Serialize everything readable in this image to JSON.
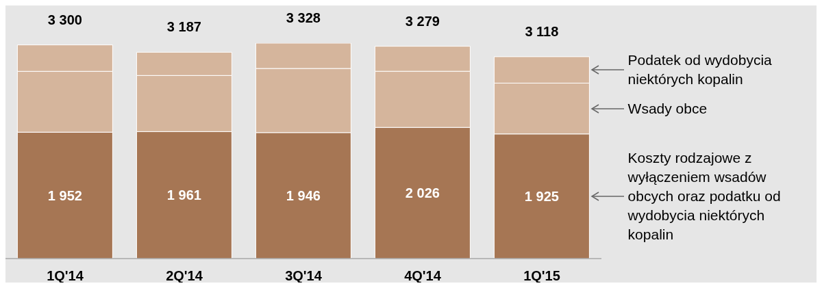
{
  "chart_data": {
    "type": "bar",
    "stacked": true,
    "categories": [
      "1Q'14",
      "2Q'14",
      "3Q'14",
      "4Q'14",
      "1Q'15"
    ],
    "series": [
      {
        "name": "Koszty rodzajowe z wyłączeniem wsadów obcych oraz podatku od wydobycia niektórych kopalin",
        "color": "#a67654",
        "values": [
          1952,
          1961,
          1946,
          2026,
          1925
        ],
        "value_labels": [
          "1 952",
          "1 961",
          "1 946",
          "2 026",
          "1 925"
        ]
      },
      {
        "name": "Wsady obce",
        "color": "#d5b59c",
        "values": [
          940,
          867,
          990,
          867,
          785
        ]
      },
      {
        "name": "Podatek od  wydobycia niektórych kopalin",
        "color": "#d5b59c",
        "values": [
          408,
          359,
          392,
          386,
          408
        ]
      }
    ],
    "totals": [
      "3 300",
      "3 187",
      "3 328",
      "3 279",
      "3 118"
    ],
    "legend": "right"
  }
}
